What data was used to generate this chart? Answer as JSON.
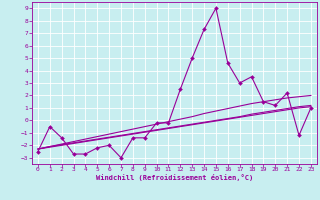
{
  "xlabel": "Windchill (Refroidissement éolien,°C)",
  "background_color": "#c8eef0",
  "grid_color": "#c0d8da",
  "line_color": "#990099",
  "x_data": [
    0,
    1,
    2,
    3,
    4,
    5,
    6,
    7,
    8,
    9,
    10,
    11,
    12,
    13,
    14,
    15,
    16,
    17,
    18,
    19,
    20,
    21,
    22,
    23
  ],
  "y_main": [
    -2.5,
    -0.5,
    -1.4,
    -2.7,
    -2.7,
    -2.2,
    -2.0,
    -3.0,
    -1.4,
    -1.4,
    -0.2,
    -0.2,
    2.5,
    5.0,
    7.3,
    9.0,
    4.6,
    3.0,
    3.5,
    1.5,
    1.2,
    2.2,
    -1.2,
    1.0
  ],
  "y_line1": [
    -2.3,
    -2.1,
    -1.9,
    -1.7,
    -1.5,
    -1.3,
    -1.1,
    -0.9,
    -0.7,
    -0.5,
    -0.3,
    -0.1,
    0.1,
    0.3,
    0.55,
    0.75,
    0.95,
    1.15,
    1.35,
    1.5,
    1.65,
    1.8,
    1.9,
    2.0
  ],
  "y_line2": [
    -2.3,
    -2.1,
    -1.95,
    -1.8,
    -1.65,
    -1.5,
    -1.35,
    -1.2,
    -1.05,
    -0.9,
    -0.75,
    -0.6,
    -0.45,
    -0.3,
    -0.15,
    0.0,
    0.15,
    0.3,
    0.5,
    0.65,
    0.8,
    0.95,
    1.1,
    1.2
  ],
  "y_line3": [
    -2.3,
    -2.15,
    -2.0,
    -1.85,
    -1.7,
    -1.55,
    -1.4,
    -1.25,
    -1.1,
    -0.95,
    -0.8,
    -0.65,
    -0.5,
    -0.35,
    -0.2,
    -0.05,
    0.1,
    0.25,
    0.4,
    0.55,
    0.7,
    0.85,
    1.0,
    1.1
  ],
  "ylim": [
    -3.5,
    9.5
  ],
  "xlim": [
    -0.5,
    23.5
  ],
  "yticks": [
    -3,
    -2,
    -1,
    0,
    1,
    2,
    3,
    4,
    5,
    6,
    7,
    8,
    9
  ],
  "xticks": [
    0,
    1,
    2,
    3,
    4,
    5,
    6,
    7,
    8,
    9,
    10,
    11,
    12,
    13,
    14,
    15,
    16,
    17,
    18,
    19,
    20,
    21,
    22,
    23
  ]
}
